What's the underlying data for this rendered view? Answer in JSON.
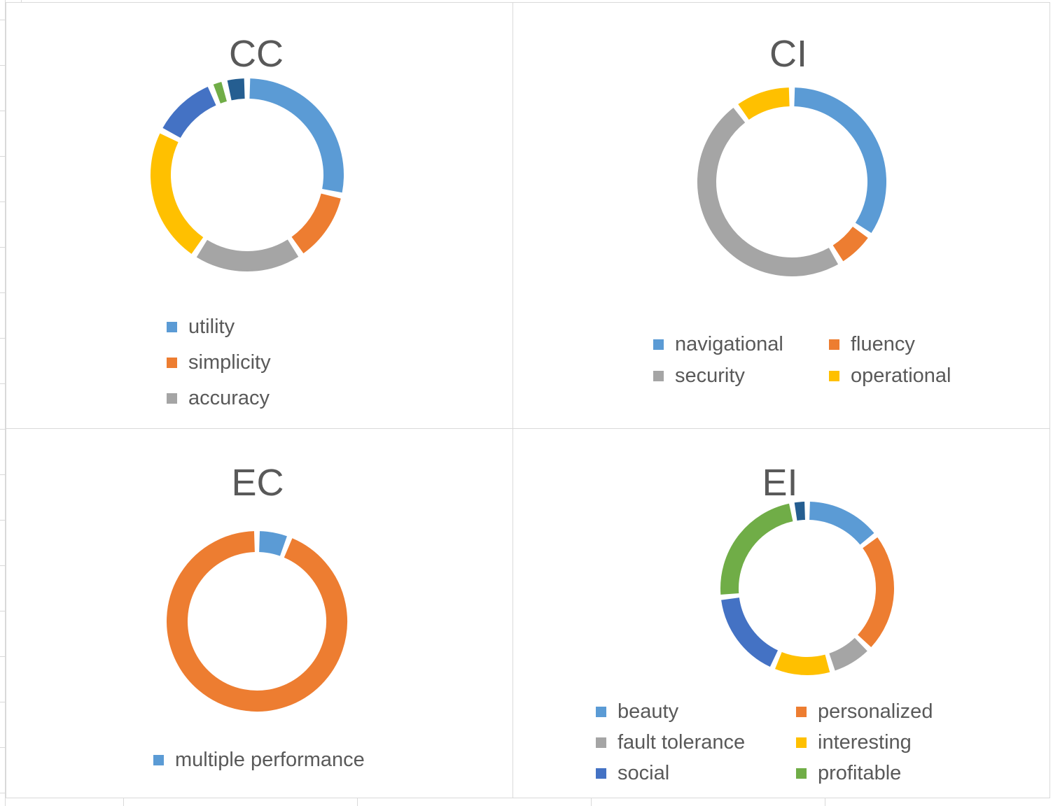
{
  "worksheet": {
    "background_color": "#ffffff",
    "gridline_color": "#d9d9d9",
    "text_color": "#595959"
  },
  "chart_data": [
    {
      "type": "doughnut",
      "title": "CC",
      "values_unit": "percent_of_ring_estimated_from_arc_angles",
      "legend_position": "bottom-left, single column",
      "segments": [
        {
          "label": "utility",
          "color": "#5B9BD5",
          "value": 29.5
        },
        {
          "label": "simplicity",
          "color": "#ED7D31",
          "value": 12
        },
        {
          "label": "accuracy",
          "color": "#A5A5A5",
          "value": 19
        },
        {
          "label": "",
          "color": "#FFC000",
          "value": 24
        },
        {
          "label": "",
          "color": "#4472C4",
          "value": 11
        },
        {
          "label": "",
          "color": "#70AD47",
          "value": 1.5
        },
        {
          "label": "",
          "color": "#255E91",
          "value": 3
        }
      ],
      "legend": [
        {
          "label": "utility",
          "color": "#5B9BD5"
        },
        {
          "label": "simplicity",
          "color": "#ED7D31"
        },
        {
          "label": "accuracy",
          "color": "#A5A5A5"
        }
      ]
    },
    {
      "type": "doughnut",
      "title": "CI",
      "values_unit": "percent_of_ring_estimated_from_arc_angles",
      "legend_position": "bottom, two columns",
      "segments": [
        {
          "label": "navigational",
          "color": "#5B9BD5",
          "value": 35
        },
        {
          "label": "fluency",
          "color": "#ED7D31",
          "value": 6
        },
        {
          "label": "security",
          "color": "#A5A5A5",
          "value": 49.5
        },
        {
          "label": "operational",
          "color": "#FFC000",
          "value": 9.5
        }
      ],
      "legend": [
        {
          "label": "navigational",
          "color": "#5B9BD5"
        },
        {
          "label": "fluency",
          "color": "#ED7D31"
        },
        {
          "label": "security",
          "color": "#A5A5A5"
        },
        {
          "label": "operational",
          "color": "#FFC000"
        }
      ]
    },
    {
      "type": "doughnut",
      "title": "EC",
      "values_unit": "percent_of_ring_estimated_from_arc_angles",
      "legend_position": "bottom, single item",
      "segments": [
        {
          "label": "multiple performance",
          "color": "#5B9BD5",
          "value": 5
        },
        {
          "label": "",
          "color": "#ED7D31",
          "value": 95
        }
      ],
      "legend": [
        {
          "label": "multiple performance",
          "color": "#5B9BD5"
        }
      ]
    },
    {
      "type": "doughnut",
      "title": "EI",
      "values_unit": "percent_of_ring_estimated_from_arc_angles",
      "legend_position": "bottom, two columns",
      "segments": [
        {
          "label": "beauty",
          "color": "#5B9BD5",
          "value": 14.5
        },
        {
          "label": "personalized",
          "color": "#ED7D31",
          "value": 23.5
        },
        {
          "label": "fault tolerance",
          "color": "#A5A5A5",
          "value": 7.5
        },
        {
          "label": "interesting",
          "color": "#FFC000",
          "value": 11
        },
        {
          "label": "social",
          "color": "#4472C4",
          "value": 17
        },
        {
          "label": "profitable",
          "color": "#70AD47",
          "value": 24.5
        },
        {
          "label": "",
          "color": "#255E91",
          "value": 2
        }
      ],
      "legend": [
        {
          "label": "beauty",
          "color": "#5B9BD5"
        },
        {
          "label": "personalized",
          "color": "#ED7D31"
        },
        {
          "label": "fault tolerance",
          "color": "#A5A5A5"
        },
        {
          "label": "interesting",
          "color": "#FFC000"
        },
        {
          "label": "social",
          "color": "#4472C4"
        },
        {
          "label": "profitable",
          "color": "#70AD47"
        }
      ]
    }
  ]
}
